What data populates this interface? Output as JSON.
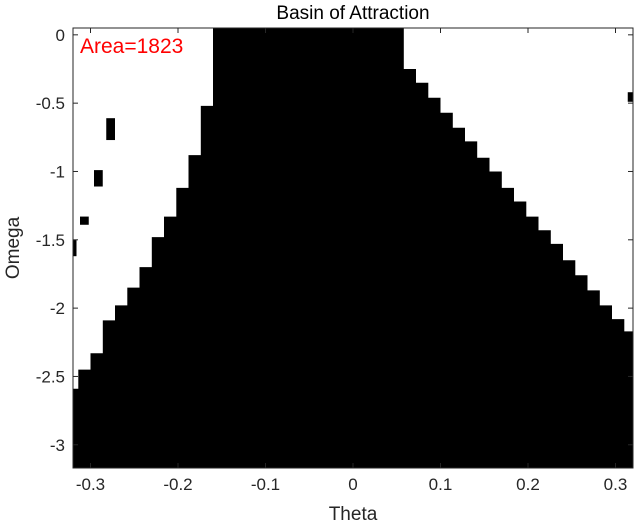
{
  "chart_data": {
    "type": "heatmap",
    "title": "Basin of Attraction",
    "xlabel": "Theta",
    "ylabel": "Omega",
    "xlim": [
      -0.32,
      0.32
    ],
    "ylim": [
      -3.17,
      0.05
    ],
    "xticks": [
      -0.3,
      -0.2,
      -0.1,
      0,
      0.1,
      0.2,
      0.3
    ],
    "xtick_labels": [
      "-0.3",
      "-0.2",
      "-0.1",
      "0",
      "0.1",
      "0.2",
      "0.3"
    ],
    "yticks": [
      0,
      -0.5,
      -1,
      -1.5,
      -2,
      -2.5,
      -3
    ],
    "ytick_labels": [
      "0",
      "-0.5",
      "-1",
      "-1.5",
      "-2",
      "-2.5",
      "-3"
    ],
    "colors": {
      "basin": "#000000",
      "outside": "#ffffff",
      "annotation": "#ff0000"
    },
    "annotation": "Area=1823",
    "basin_region": {
      "description_points": "boundary vertices of the black basin region in data units (theta, omega)",
      "left_boundary": [
        [
          -0.16,
          0.05
        ],
        [
          -0.16,
          -0.52
        ],
        [
          -0.174,
          -0.52
        ],
        [
          -0.174,
          -0.88
        ],
        [
          -0.188,
          -0.88
        ],
        [
          -0.188,
          -1.12
        ],
        [
          -0.202,
          -1.12
        ],
        [
          -0.202,
          -1.33
        ],
        [
          -0.216,
          -1.33
        ],
        [
          -0.216,
          -1.48
        ],
        [
          -0.23,
          -1.48
        ],
        [
          -0.23,
          -1.7
        ],
        [
          -0.244,
          -1.7
        ],
        [
          -0.244,
          -1.85
        ],
        [
          -0.258,
          -1.85
        ],
        [
          -0.258,
          -1.98
        ],
        [
          -0.272,
          -1.98
        ],
        [
          -0.272,
          -2.09
        ],
        [
          -0.286,
          -2.09
        ],
        [
          -0.286,
          -2.33
        ],
        [
          -0.3,
          -2.33
        ],
        [
          -0.3,
          -2.45
        ],
        [
          -0.314,
          -2.45
        ],
        [
          -0.314,
          -2.59
        ],
        [
          -0.32,
          -2.59
        ],
        [
          -0.32,
          -3.17
        ]
      ],
      "right_boundary": [
        [
          0.32,
          -3.17
        ],
        [
          0.32,
          -2.17
        ],
        [
          0.31,
          -2.17
        ],
        [
          0.31,
          -2.08
        ],
        [
          0.296,
          -2.08
        ],
        [
          0.296,
          -1.98
        ],
        [
          0.282,
          -1.98
        ],
        [
          0.282,
          -1.87
        ],
        [
          0.268,
          -1.87
        ],
        [
          0.268,
          -1.76
        ],
        [
          0.254,
          -1.76
        ],
        [
          0.254,
          -1.65
        ],
        [
          0.24,
          -1.65
        ],
        [
          0.24,
          -1.53
        ],
        [
          0.226,
          -1.53
        ],
        [
          0.226,
          -1.43
        ],
        [
          0.212,
          -1.43
        ],
        [
          0.212,
          -1.33
        ],
        [
          0.198,
          -1.33
        ],
        [
          0.198,
          -1.22
        ],
        [
          0.184,
          -1.22
        ],
        [
          0.184,
          -1.12
        ],
        [
          0.17,
          -1.12
        ],
        [
          0.17,
          -1.0
        ],
        [
          0.156,
          -1.0
        ],
        [
          0.156,
          -0.9
        ],
        [
          0.142,
          -0.9
        ],
        [
          0.142,
          -0.78
        ],
        [
          0.128,
          -0.78
        ],
        [
          0.128,
          -0.68
        ],
        [
          0.114,
          -0.68
        ],
        [
          0.114,
          -0.57
        ],
        [
          0.1,
          -0.57
        ],
        [
          0.1,
          -0.46
        ],
        [
          0.086,
          -0.46
        ],
        [
          0.086,
          -0.35
        ],
        [
          0.072,
          -0.35
        ],
        [
          0.072,
          -0.25
        ],
        [
          0.058,
          -0.25
        ],
        [
          0.058,
          -0.1
        ],
        [
          0.058,
          0.05
        ]
      ],
      "islands": [
        {
          "theta": [
            0.314,
            0.32
          ],
          "omega": [
            -0.49,
            -0.42
          ]
        },
        {
          "theta": [
            -0.282,
            -0.272
          ],
          "omega": [
            -0.77,
            -0.61
          ]
        },
        {
          "theta": [
            -0.296,
            -0.286
          ],
          "omega": [
            -1.11,
            -0.99
          ]
        },
        {
          "theta": [
            -0.312,
            -0.302
          ],
          "omega": [
            -1.39,
            -1.33
          ]
        },
        {
          "theta": [
            -0.326,
            -0.316
          ],
          "omega": [
            -1.62,
            -1.5
          ]
        }
      ]
    }
  }
}
